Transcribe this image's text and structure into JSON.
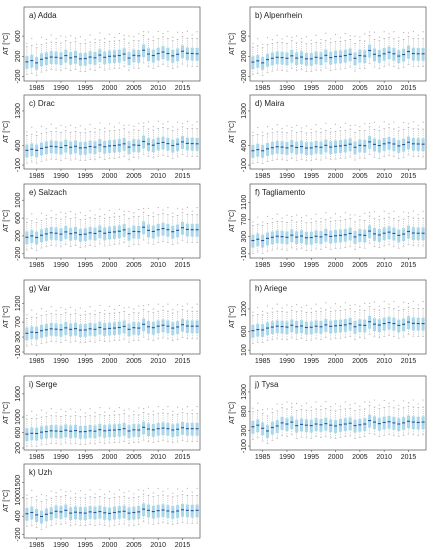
{
  "chart_data": {
    "type": "boxplot",
    "layout": "grid",
    "years": [
      1983,
      1984,
      1985,
      1986,
      1987,
      1988,
      1989,
      1990,
      1991,
      1992,
      1993,
      1994,
      1995,
      1996,
      1997,
      1998,
      1999,
      2000,
      2001,
      2002,
      2003,
      2004,
      2005,
      2006,
      2007,
      2008,
      2009,
      2010,
      2011,
      2012,
      2013,
      2014,
      2015,
      2016,
      2017,
      2018
    ],
    "xticks": [
      1985,
      1990,
      1995,
      2000,
      2005,
      2010,
      2015
    ],
    "ylabel": "AT [°C]",
    "panels": [
      {
        "title": "a) Adda",
        "ylim": [
          -250,
          900
        ],
        "yticks": [
          -200,
          200,
          600
        ],
        "median": [
          90,
          115,
          70,
          140,
          165,
          185,
          180,
          165,
          215,
          170,
          190,
          150,
          155,
          185,
          170,
          225,
          180,
          200,
          205,
          215,
          245,
          165,
          220,
          210,
          320,
          245,
          215,
          255,
          285,
          255,
          210,
          240,
          300,
          260,
          255,
          250
        ]
      },
      {
        "title": "b) Alpenrhein",
        "ylim": [
          -250,
          900
        ],
        "yticks": [
          -200,
          200,
          600
        ],
        "median": [
          85,
          110,
          70,
          135,
          160,
          180,
          175,
          160,
          210,
          165,
          185,
          150,
          150,
          180,
          165,
          220,
          175,
          195,
          200,
          215,
          240,
          160,
          215,
          205,
          315,
          240,
          210,
          250,
          280,
          250,
          205,
          235,
          295,
          255,
          250,
          250
        ]
      },
      {
        "title": "c) Drac",
        "ylim": [
          -150,
          1350
        ],
        "yticks": [
          -100,
          400,
          1300
        ],
        "median": [
          280,
          310,
          280,
          330,
          360,
          385,
          375,
          355,
          405,
          360,
          385,
          345,
          350,
          380,
          365,
          420,
          375,
          395,
          405,
          420,
          450,
          365,
          420,
          410,
          510,
          445,
          415,
          460,
          485,
          455,
          405,
          440,
          500,
          460,
          455,
          450
        ]
      },
      {
        "title": "d) Maira",
        "ylim": [
          -150,
          1350
        ],
        "yticks": [
          -100,
          400,
          1300
        ],
        "median": [
          270,
          300,
          270,
          320,
          350,
          375,
          365,
          345,
          395,
          355,
          380,
          340,
          345,
          375,
          360,
          410,
          365,
          385,
          395,
          410,
          440,
          360,
          410,
          400,
          500,
          435,
          405,
          450,
          475,
          445,
          395,
          430,
          490,
          450,
          445,
          440
        ]
      },
      {
        "title": "e) Salzach",
        "ylim": [
          -250,
          1050
        ],
        "yticks": [
          -200,
          200,
          600,
          1000
        ],
        "median": [
          170,
          200,
          165,
          215,
          245,
          270,
          260,
          240,
          290,
          250,
          270,
          230,
          240,
          270,
          255,
          305,
          260,
          280,
          290,
          305,
          335,
          250,
          300,
          295,
          395,
          325,
          300,
          340,
          365,
          340,
          295,
          325,
          385,
          345,
          340,
          340
        ]
      },
      {
        "title": "f) Tagliamento",
        "ylim": [
          -150,
          1200
        ],
        "yticks": [
          -100,
          300,
          700,
          1100
        ],
        "median": [
          210,
          240,
          210,
          260,
          285,
          310,
          300,
          285,
          335,
          290,
          315,
          275,
          280,
          310,
          295,
          345,
          305,
          320,
          330,
          345,
          375,
          295,
          340,
          330,
          430,
          365,
          340,
          380,
          405,
          375,
          330,
          360,
          420,
          385,
          380,
          380
        ]
      },
      {
        "title": "g) Var",
        "ylim": [
          -100,
          1450
        ],
        "yticks": [
          -100,
          300,
          700,
          1200
        ],
        "median": [
          400,
          430,
          420,
          470,
          495,
          520,
          510,
          495,
          545,
          505,
          525,
          485,
          490,
          520,
          505,
          555,
          515,
          530,
          540,
          555,
          585,
          505,
          550,
          540,
          640,
          575,
          550,
          590,
          615,
          590,
          540,
          570,
          630,
          595,
          590,
          590
        ]
      },
      {
        "title": "h) Ariege",
        "ylim": [
          50,
          1600
        ],
        "yticks": [
          100,
          600,
          1200
        ],
        "median": [
          620,
          650,
          640,
          690,
          715,
          740,
          730,
          715,
          765,
          725,
          745,
          705,
          710,
          740,
          725,
          775,
          735,
          750,
          760,
          775,
          805,
          725,
          770,
          760,
          860,
          795,
          770,
          810,
          835,
          810,
          760,
          790,
          850,
          815,
          810,
          810
        ]
      },
      {
        "title": "i) Serge",
        "ylim": [
          200,
          1700
        ],
        "yticks": [
          200,
          600,
          1000,
          1600
        ],
        "median": [
          560,
          580,
          575,
          610,
          625,
          645,
          640,
          630,
          660,
          635,
          650,
          620,
          625,
          645,
          635,
          675,
          645,
          660,
          665,
          675,
          700,
          640,
          670,
          665,
          735,
          690,
          670,
          700,
          715,
          700,
          665,
          685,
          725,
          700,
          700,
          700
        ]
      },
      {
        "title": "j) Tysa",
        "ylim": [
          -150,
          1350
        ],
        "yticks": [
          -100,
          300,
          800,
          1300
        ],
        "median": [
          400,
          440,
          360,
          290,
          380,
          420,
          500,
          470,
          520,
          430,
          460,
          440,
          430,
          470,
          450,
          480,
          440,
          420,
          450,
          470,
          490,
          430,
          450,
          470,
          560,
          520,
          480,
          510,
          530,
          500,
          470,
          500,
          540,
          520,
          510,
          520
        ]
      },
      {
        "title": "k) Uzh",
        "ylim": [
          -250,
          1650
        ],
        "yticks": [
          -200,
          400,
          1000,
          1500
        ],
        "median": [
          480,
          520,
          440,
          390,
          460,
          500,
          560,
          540,
          590,
          500,
          530,
          510,
          500,
          540,
          520,
          550,
          510,
          490,
          520,
          540,
          560,
          500,
          520,
          540,
          630,
          590,
          550,
          580,
          600,
          570,
          540,
          570,
          610,
          590,
          580,
          590
        ]
      }
    ]
  }
}
